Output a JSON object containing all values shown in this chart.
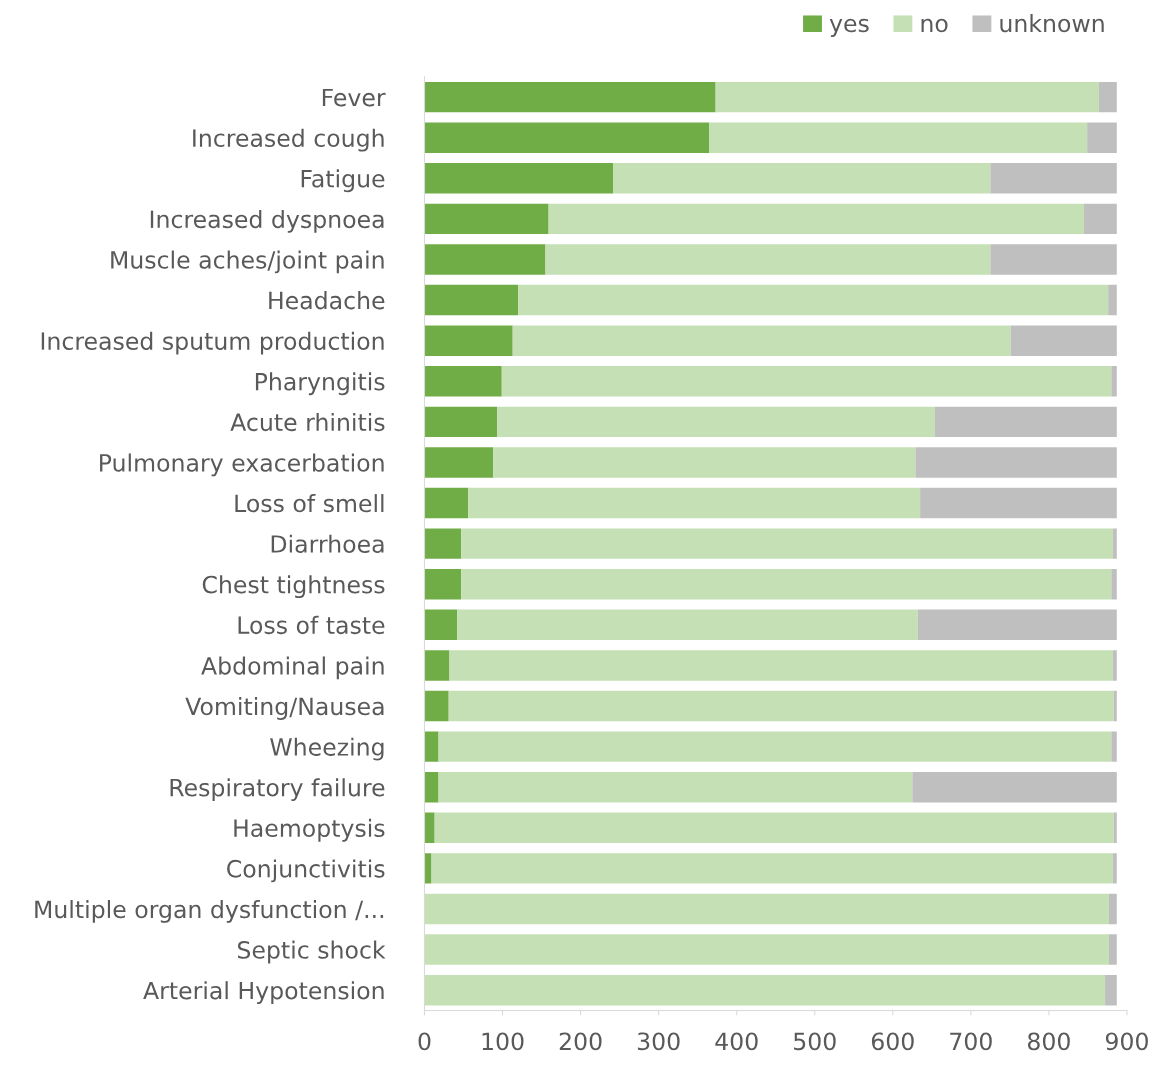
{
  "chart_data": {
    "type": "bar",
    "orientation": "horizontal",
    "stacked": true,
    "categories": [
      "Fever",
      "Increased cough",
      "Fatigue",
      "Increased dyspnoea",
      "Muscle aches/joint pain",
      "Headache",
      "Increased sputum production",
      "Pharyngitis",
      "Acute rhinitis",
      "Pulmonary exacerbation",
      "Loss of smell",
      "Diarrhoea",
      "Chest tightness",
      "Loss of taste",
      "Abdominal pain",
      "Vomiting/Nausea",
      "Wheezing",
      "Respiratory failure",
      "Haemoptysis",
      "Conjunctivitis",
      "Multiple organ dysfunction /...",
      "Septic shock",
      "Arterial Hypotension"
    ],
    "series": [
      {
        "name": "yes",
        "color": "#70ad47",
        "values": [
          373,
          365,
          242,
          159,
          155,
          120,
          113,
          99,
          93,
          88,
          56,
          47,
          47,
          42,
          32,
          31,
          18,
          18,
          13,
          9,
          0,
          0,
          0
        ]
      },
      {
        "name": "no",
        "color": "#c5e0b4",
        "values": [
          491,
          484,
          483,
          686,
          570,
          756,
          638,
          781,
          561,
          541,
          579,
          835,
          833,
          590,
          850,
          852,
          862,
          607,
          870,
          873,
          877,
          877,
          872
        ]
      },
      {
        "name": "unknown",
        "color": "#bfbfbf",
        "values": [
          23,
          38,
          162,
          42,
          162,
          11,
          136,
          7,
          233,
          258,
          252,
          5,
          7,
          255,
          5,
          4,
          7,
          262,
          4,
          5,
          10,
          10,
          15
        ]
      }
    ],
    "xlim": [
      0,
      900
    ],
    "xticks": [
      0,
      100,
      200,
      300,
      400,
      500,
      600,
      700,
      800,
      900
    ],
    "grid": false,
    "legend": "top right"
  }
}
